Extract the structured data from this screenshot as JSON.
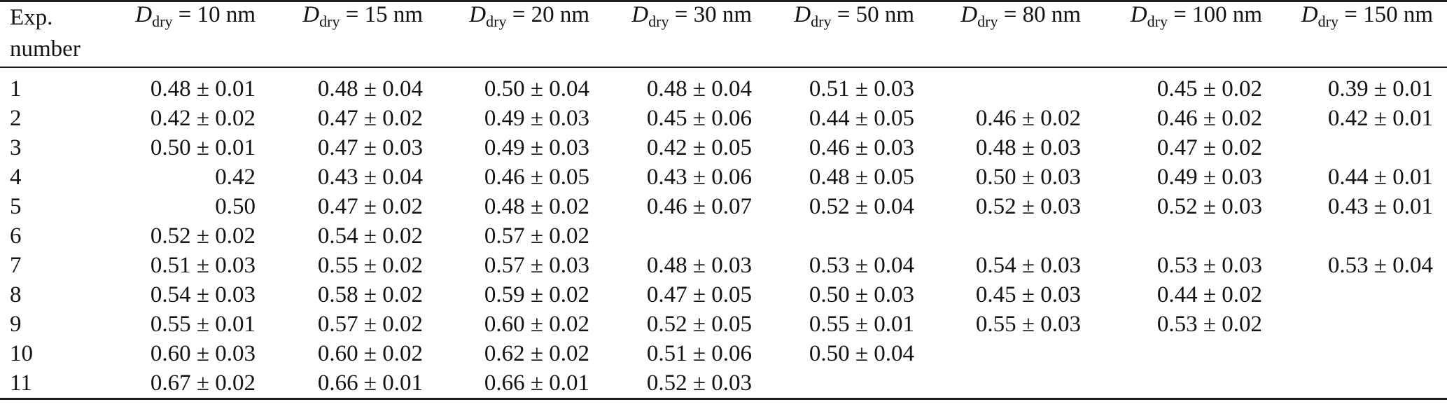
{
  "table": {
    "row_header": {
      "line1": "Exp.",
      "line2": "number"
    },
    "col_symbol": "D",
    "col_subscript": "dry",
    "equals": "=",
    "columns": [
      "10 nm",
      "15 nm",
      "20 nm",
      "30 nm",
      "50 nm",
      "80 nm",
      "100 nm",
      "150 nm"
    ],
    "rows": [
      {
        "exp": "1",
        "values": [
          "0.48 ± 0.01",
          "0.48 ± 0.04",
          "0.50 ± 0.04",
          "0.48 ± 0.04",
          "0.51 ± 0.03",
          "",
          "0.45 ± 0.02",
          "0.39 ± 0.01"
        ]
      },
      {
        "exp": "2",
        "values": [
          "0.42 ± 0.02",
          "0.47 ± 0.02",
          "0.49 ± 0.03",
          "0.45 ± 0.06",
          "0.44 ± 0.05",
          "0.46 ± 0.02",
          "0.46 ± 0.02",
          "0.42 ± 0.01"
        ]
      },
      {
        "exp": "3",
        "values": [
          "0.50 ± 0.01",
          "0.47 ± 0.03",
          "0.49 ± 0.03",
          "0.42 ± 0.05",
          "0.46 ± 0.03",
          "0.48 ± 0.03",
          "0.47 ± 0.02",
          ""
        ]
      },
      {
        "exp": "4",
        "values": [
          "0.42",
          "0.43 ± 0.04",
          "0.46 ± 0.05",
          "0.43 ± 0.06",
          "0.48 ± 0.05",
          "0.50 ± 0.03",
          "0.49 ± 0.03",
          "0.44 ± 0.01"
        ]
      },
      {
        "exp": "5",
        "values": [
          "0.50",
          "0.47 ± 0.02",
          "0.48 ± 0.02",
          "0.46 ± 0.07",
          "0.52 ± 0.04",
          "0.52 ± 0.03",
          "0.52 ± 0.03",
          "0.43 ± 0.01"
        ]
      },
      {
        "exp": "6",
        "values": [
          "0.52 ± 0.02",
          "0.54 ± 0.02",
          "0.57 ± 0.02",
          "",
          "",
          "",
          "",
          ""
        ]
      },
      {
        "exp": "7",
        "values": [
          "0.51 ± 0.03",
          "0.55 ± 0.02",
          "0.57 ± 0.03",
          "0.48 ± 0.03",
          "0.53 ± 0.04",
          "0.54 ± 0.03",
          "0.53 ± 0.03",
          "0.53 ± 0.04"
        ]
      },
      {
        "exp": "8",
        "values": [
          "0.54 ± 0.03",
          "0.58 ± 0.02",
          "0.59 ± 0.02",
          "0.47 ± 0.05",
          "0.50 ± 0.03",
          "0.45 ± 0.03",
          "0.44 ± 0.02",
          ""
        ]
      },
      {
        "exp": "9",
        "values": [
          "0.55 ± 0.01",
          "0.57 ± 0.02",
          "0.60 ± 0.02",
          "0.52 ± 0.05",
          "0.55 ± 0.01",
          "0.55 ± 0.03",
          "0.53 ± 0.02",
          ""
        ]
      },
      {
        "exp": "10",
        "values": [
          "0.60 ± 0.03",
          "0.60 ± 0.02",
          "0.62 ± 0.02",
          "0.51 ± 0.06",
          "0.50 ± 0.04",
          "",
          "",
          ""
        ]
      },
      {
        "exp": "11",
        "values": [
          "0.67 ± 0.02",
          "0.66 ± 0.01",
          "0.66 ± 0.01",
          "0.52 ± 0.03",
          "",
          "",
          "",
          ""
        ]
      }
    ]
  },
  "colors": {
    "text": "#131313",
    "rule": "#1d1d1d",
    "background": "#ffffff"
  }
}
